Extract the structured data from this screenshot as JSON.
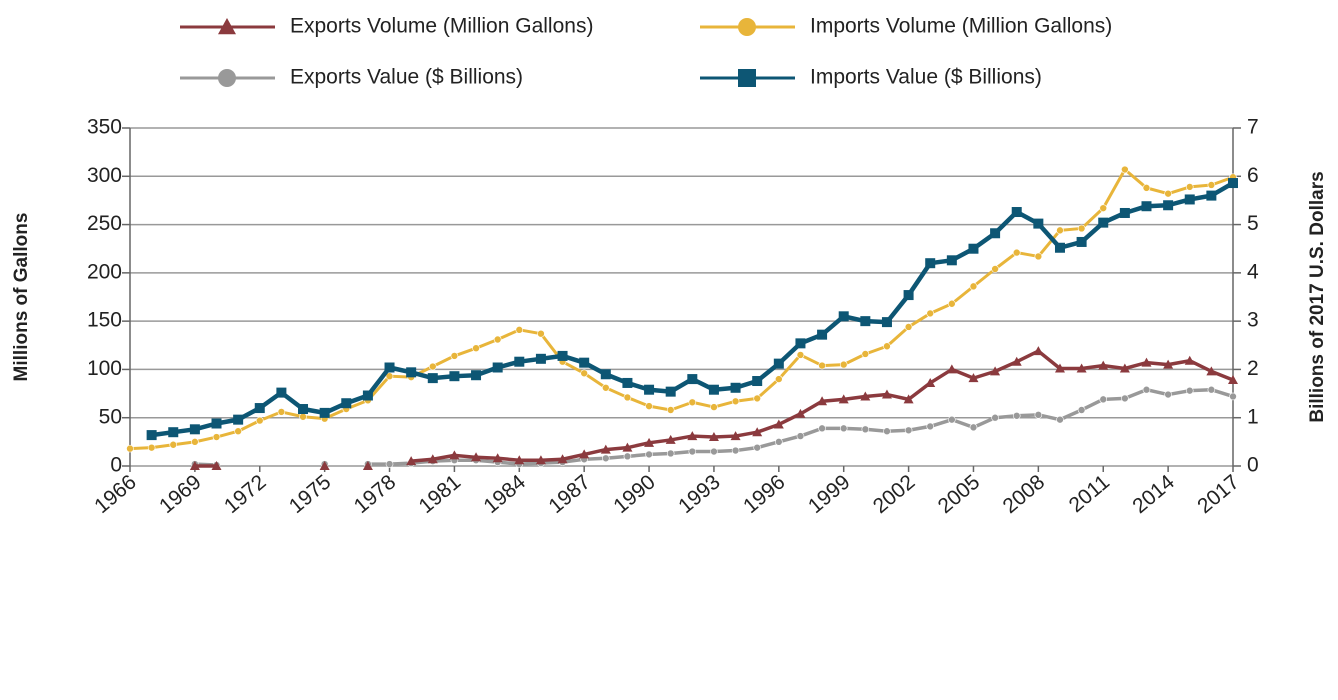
{
  "chart_data": {
    "type": "line",
    "ylabel": "Millions of Gallons",
    "y2label": "Billions of 2017 U.S. Dollars",
    "x": [
      1966,
      1967,
      1968,
      1969,
      1970,
      1971,
      1972,
      1973,
      1974,
      1975,
      1976,
      1977,
      1978,
      1979,
      1980,
      1981,
      1982,
      1983,
      1984,
      1985,
      1986,
      1987,
      1988,
      1989,
      1990,
      1991,
      1992,
      1993,
      1994,
      1995,
      1996,
      1997,
      1998,
      1999,
      2000,
      2001,
      2002,
      2003,
      2004,
      2005,
      2006,
      2007,
      2008,
      2009,
      2010,
      2011,
      2012,
      2013,
      2014,
      2015,
      2016,
      2017
    ],
    "xlim": [
      1966,
      2017
    ],
    "xticks": [
      1966,
      1969,
      1972,
      1975,
      1978,
      1981,
      1984,
      1987,
      1990,
      1993,
      1996,
      1999,
      2002,
      2005,
      2008,
      2011,
      2014,
      2017
    ],
    "ylim": [
      0,
      350
    ],
    "yticks": [
      0,
      50,
      100,
      150,
      200,
      250,
      300,
      350
    ],
    "y2lim": [
      0,
      7
    ],
    "y2ticks": [
      0,
      1,
      2,
      3,
      4,
      5,
      6,
      7
    ],
    "grid": true,
    "series": [
      {
        "name": "Exports Volume (Million Gallons)",
        "color": "#8b3a3e",
        "marker": "triangle",
        "values": [
          null,
          null,
          null,
          0,
          0,
          null,
          null,
          null,
          null,
          0,
          null,
          0,
          null,
          5,
          7,
          11,
          9,
          8,
          6,
          6,
          7,
          12,
          17,
          19,
          24,
          27,
          31,
          30,
          31,
          35,
          43,
          54,
          67,
          69,
          72,
          74,
          69,
          86,
          100,
          91,
          98,
          108,
          119,
          101,
          101,
          104,
          101,
          107,
          105,
          109,
          98,
          89
        ]
      },
      {
        "name": "Imports Volume (Million Gallons)",
        "color": "#e8b53a",
        "marker": "circle",
        "values": [
          18,
          19,
          22,
          25,
          30,
          36,
          47,
          56,
          51,
          49,
          59,
          68,
          93,
          92,
          103,
          114,
          122,
          131,
          141,
          137,
          108,
          96,
          81,
          71,
          62,
          58,
          66,
          61,
          67,
          70,
          90,
          115,
          104,
          105,
          116,
          124,
          144,
          158,
          168,
          186,
          204,
          221,
          217,
          244,
          246,
          267,
          307,
          288,
          282,
          289,
          291,
          299
        ]
      },
      {
        "name": "Exports Value ($ Billions)",
        "color": "#999999",
        "marker": "circle",
        "axis": "y2",
        "values": [
          null,
          null,
          null,
          0.04,
          0.02,
          null,
          null,
          null,
          null,
          0.04,
          null,
          0.04,
          0.04,
          0.06,
          0.1,
          0.12,
          0.12,
          0.08,
          0.04,
          0.06,
          0.08,
          0.14,
          0.16,
          0.2,
          0.24,
          0.26,
          0.3,
          0.3,
          0.32,
          0.38,
          0.5,
          0.62,
          0.78,
          0.78,
          0.76,
          0.72,
          0.74,
          0.82,
          0.96,
          0.8,
          1.0,
          1.04,
          1.06,
          0.96,
          1.16,
          1.38,
          1.4,
          1.58,
          1.48,
          1.56,
          1.58,
          1.44
        ]
      },
      {
        "name": "Imports Value ($ Billions)",
        "color": "#0d5674",
        "marker": "square",
        "axis": "y2",
        "values": [
          null,
          0.64,
          0.7,
          0.76,
          0.88,
          0.96,
          1.2,
          1.52,
          1.18,
          1.1,
          1.3,
          1.46,
          2.04,
          1.94,
          1.82,
          1.86,
          1.88,
          2.04,
          2.16,
          2.22,
          2.28,
          2.14,
          1.9,
          1.72,
          1.58,
          1.54,
          1.8,
          1.58,
          1.62,
          1.76,
          2.12,
          2.54,
          2.72,
          3.1,
          3.0,
          2.98,
          3.54,
          4.2,
          4.26,
          4.5,
          4.82,
          5.26,
          5.02,
          4.52,
          4.64,
          5.04,
          5.24,
          5.38,
          5.4,
          5.52,
          5.6,
          5.86
        ]
      }
    ]
  }
}
